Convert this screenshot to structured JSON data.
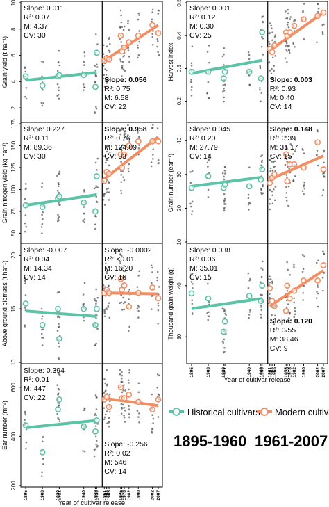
{
  "colors": {
    "historical": "#5cc3a8",
    "modern": "#f28e63",
    "points": "#595959",
    "divider": "#000000"
  },
  "legend": {
    "historical_label": "Historical cultivars",
    "modern_label": "Modern cultivars"
  },
  "era_labels": {
    "historical": "1895-1960",
    "modern": "1961-2007"
  },
  "chart_data": [
    {
      "type": "scatter",
      "panel": "grain-yield",
      "ylabel": "Grain yield (t ha⁻¹)",
      "ylim": [
        1,
        10
      ],
      "yticks": [
        2,
        4,
        6,
        8,
        10
      ],
      "xlabel": "",
      "hist_stats": [
        "Slope: 0.011",
        "R²: 0.07",
        "M: 4.37",
        "CV: 30"
      ],
      "mod_stats": [
        "Slope: 0.056",
        "R²: 0.75",
        "M: 6.58",
        "CV: 22"
      ],
      "hist_slope_bold": false,
      "mod_slope_bold": true,
      "hist_means": {
        "x": [
          1895,
          1908,
          1920,
          1921,
          1940,
          1949,
          1950
        ],
        "y": [
          4.4,
          3.7,
          4.4,
          4.5,
          4.5,
          3.6,
          6.2
        ]
      },
      "mod_means": {
        "x": [
          1961,
          1963,
          1965,
          1975,
          1976,
          1978,
          1982,
          1990,
          2002,
          2007
        ],
        "y": [
          5.6,
          5.8,
          5.7,
          7.5,
          6.3,
          6.6,
          7.0,
          7.5,
          8.3,
          7.7
        ]
      },
      "hist_fit": [
        [
          1895,
          4.1
        ],
        [
          1950,
          4.7
        ]
      ],
      "mod_fit": [
        [
          1961,
          5.6
        ],
        [
          2007,
          8.3
        ]
      ]
    },
    {
      "type": "scatter",
      "panel": "harvest-index",
      "ylabel": "Harvest index",
      "ylim": [
        0.14,
        0.5
      ],
      "yticks": [
        0.2,
        0.3,
        0.4,
        0.5
      ],
      "xlabel": "",
      "hist_stats": [
        "Slope: 0.001",
        "R²: 0.12",
        "M: 0.30",
        "CV: 25"
      ],
      "mod_stats": [
        "Slope: 0.003",
        "R²: 0.93",
        "M: 0.40",
        "CV: 14"
      ],
      "hist_slope_bold": false,
      "mod_slope_bold": true,
      "hist_means": {
        "x": [
          1895,
          1908,
          1920,
          1921,
          1940,
          1949,
          1950
        ],
        "y": [
          0.29,
          0.29,
          0.27,
          0.29,
          0.29,
          0.27,
          0.41
        ]
      },
      "mod_means": {
        "x": [
          1961,
          1963,
          1965,
          1975,
          1976,
          1978,
          1982,
          1990,
          2002,
          2007
        ],
        "y": [
          0.36,
          0.35,
          0.37,
          0.41,
          0.4,
          0.41,
          0.43,
          0.45,
          0.46,
          0.47
        ]
      },
      "hist_fit": [
        [
          1895,
          0.285
        ],
        [
          1950,
          0.325
        ]
      ],
      "mod_fit": [
        [
          1961,
          0.355
        ],
        [
          2007,
          0.47
        ]
      ]
    },
    {
      "type": "scatter",
      "panel": "grain-nitrogen-yield",
      "ylabel": "Grain nitrogen yield (kg ha⁻¹)",
      "ylim": [
        40,
        175
      ],
      "yticks": [
        50,
        75,
        100,
        125,
        150,
        175
      ],
      "xlabel": "",
      "hist_stats": [
        "Slope: 0.227",
        "R²: 0.11",
        "M: 89.36",
        "CV: 30"
      ],
      "mod_stats": [
        "Slope: 0.958",
        "R²: 0.76",
        "M: 124.09",
        "CV: 33"
      ],
      "hist_slope_bold": false,
      "mod_slope_bold": true,
      "hist_means": {
        "x": [
          1895,
          1908,
          1920,
          1921,
          1940,
          1949,
          1950
        ],
        "y": [
          82,
          80,
          90,
          92,
          85,
          75,
          115
        ]
      },
      "mod_means": {
        "x": [
          1961,
          1963,
          1965,
          1975,
          1976,
          1978,
          1982,
          1990,
          2002,
          2007
        ],
        "y": [
          110,
          120,
          118,
          140,
          125,
          140,
          150,
          155,
          155,
          155
        ]
      },
      "hist_fit": [
        [
          1895,
          82
        ],
        [
          1950,
          94
        ]
      ],
      "mod_fit": [
        [
          1961,
          112
        ],
        [
          2007,
          160
        ]
      ]
    },
    {
      "type": "scatter",
      "panel": "grain-number",
      "ylabel": "Grain number (ear⁻¹)",
      "ylim": [
        10,
        45
      ],
      "yticks": [
        10,
        20,
        30,
        40
      ],
      "xlabel": "",
      "hist_stats": [
        "Slope: 0.045",
        "R²: 0.20",
        "M: 27.79",
        "CV: 14"
      ],
      "mod_stats": [
        "Slope: 0.148",
        "R²: 0.39",
        "M: 31.17",
        "CV: 15"
      ],
      "hist_slope_bold": false,
      "mod_slope_bold": true,
      "hist_means": {
        "x": [
          1895,
          1908,
          1920,
          1921,
          1940,
          1949,
          1950
        ],
        "y": [
          26,
          29.5,
          26,
          27,
          26.5,
          28.5,
          31.5
        ]
      },
      "mod_means": {
        "x": [
          1961,
          1963,
          1965,
          1975,
          1976,
          1978,
          1982,
          1990,
          2002,
          2007
        ],
        "y": [
          27.5,
          29,
          30,
          36,
          28,
          33,
          33,
          32,
          39.5,
          31.5
        ]
      },
      "hist_fit": [
        [
          1895,
          26.5
        ],
        [
          1950,
          29.2
        ]
      ],
      "mod_fit": [
        [
          1961,
          28.5
        ],
        [
          2007,
          35.5
        ]
      ]
    },
    {
      "type": "scatter",
      "panel": "above-ground-biomass",
      "ylabel": "Above ground biomass (t ha⁻¹)",
      "ylim": [
        10,
        21
      ],
      "yticks": [
        10,
        15,
        20
      ],
      "xlabel": "",
      "hist_stats": [
        "Slope: -0.007",
        "R²: 0.04",
        "M: 14.34",
        "CV: 14"
      ],
      "mod_stats": [
        "Slope: -0.0002",
        "R²: <0.01",
        "M: 16.20",
        "CV: 16"
      ],
      "hist_slope_bold": false,
      "mod_slope_bold": false,
      "hist_means": {
        "x": [
          1895,
          1908,
          1920,
          1921,
          1940,
          1949,
          1950
        ],
        "y": [
          15.5,
          13.5,
          15,
          12.2,
          15,
          13.5,
          15
        ]
      },
      "mod_means": {
        "x": [
          1961,
          1963,
          1965,
          1975,
          1976,
          1978,
          1982,
          1990,
          2002,
          2007
        ],
        "y": [
          16.5,
          16.8,
          16.5,
          17.8,
          16.8,
          17.2,
          15.2,
          16.5,
          17.0,
          16.0
        ]
      },
      "hist_fit": [
        [
          1895,
          14.8
        ],
        [
          1950,
          14.3
        ]
      ],
      "mod_fit": [
        [
          1961,
          16.5
        ],
        [
          2007,
          16.4
        ]
      ]
    },
    {
      "type": "scatter",
      "panel": "thousand-grain-weight",
      "ylabel": "Thousand grain weight (g)",
      "ylim": [
        25,
        48
      ],
      "yticks": [
        30,
        40
      ],
      "xlabel": "Year of cultivar release",
      "xticks": [
        1895,
        1908,
        1920,
        1921,
        1940,
        1949,
        1950,
        1961,
        1963,
        1965,
        1975,
        1976,
        1978,
        1982,
        1990,
        2002,
        2007
      ],
      "hist_stats": [
        "Slope: 0.038",
        "R²: 0.06",
        "M: 35.01",
        "CV: 15"
      ],
      "mod_stats": [
        "Slope: 0.120",
        "R²: 0.55",
        "M: 38.46",
        "CV: 9"
      ],
      "hist_slope_bold": false,
      "mod_slope_bold": true,
      "hist_means": {
        "x": [
          1895,
          1908,
          1920,
          1921,
          1940,
          1949,
          1950
        ],
        "y": [
          38.5,
          37.5,
          31,
          33,
          38,
          37,
          40
        ]
      },
      "mod_means": {
        "x": [
          1961,
          1963,
          1965,
          1975,
          1976,
          1978,
          1982,
          1990,
          2002,
          2007
        ],
        "y": [
          39.5,
          37,
          36,
          35,
          40,
          37.5,
          39,
          41,
          41,
          44
        ]
      },
      "hist_fit": [
        [
          1895,
          35.5
        ],
        [
          1950,
          37.5
        ]
      ],
      "mod_fit": [
        [
          1961,
          36.0
        ],
        [
          2007,
          43.0
        ]
      ]
    },
    {
      "type": "scatter",
      "panel": "ear-number",
      "ylabel": "Ear number (m⁻²)",
      "ylim": [
        200,
        690
      ],
      "yticks": [
        200,
        400,
        600
      ],
      "xlabel": "Year of cultivar release",
      "xticks": [
        1895,
        1908,
        1920,
        1921,
        1940,
        1949,
        1950,
        1961,
        1963,
        1965,
        1975,
        1976,
        1978,
        1982,
        1990,
        2002,
        2007
      ],
      "hist_stats": [
        "Slope: 0.394",
        "R²: 0.01",
        "M: 447",
        "CV: 22"
      ],
      "mod_stats": [
        "Slope: -0.256",
        "R²: 0.02",
        "M: 546",
        "CV: 14"
      ],
      "hist_slope_bold": false,
      "mod_slope_bold": false,
      "hist_means": {
        "x": [
          1895,
          1908,
          1920,
          1921,
          1940,
          1949,
          1950
        ],
        "y": [
          445,
          335,
          510,
          550,
          440,
          420,
          465
        ]
      },
      "mod_means": {
        "x": [
          1961,
          1963,
          1965,
          1975,
          1976,
          1978,
          1982,
          1990,
          2002,
          2007
        ],
        "y": [
          550,
          560,
          520,
          600,
          555,
          555,
          570,
          540,
          510,
          550
        ]
      },
      "hist_fit": [
        [
          1895,
          435
        ],
        [
          1950,
          465
        ]
      ],
      "mod_fit": [
        [
          1961,
          555
        ],
        [
          2007,
          525
        ]
      ]
    }
  ]
}
